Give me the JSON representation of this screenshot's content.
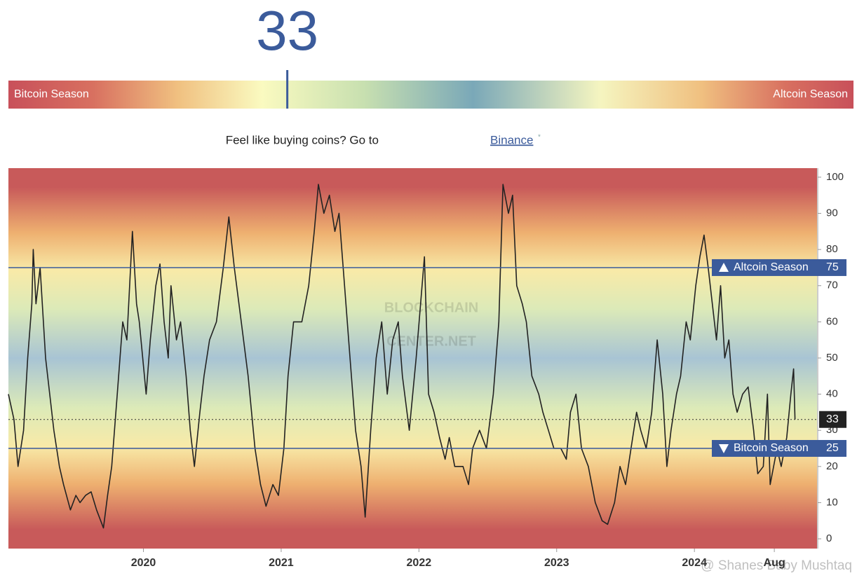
{
  "chart_data": {
    "type": "line",
    "gauge": {
      "value": 33,
      "lim": [
        0,
        100
      ],
      "left_label": "Bitcoin Season",
      "right_label": "Altcoin Season"
    },
    "promo": "Feel like buying coins? Go to",
    "link": "Binance",
    "watermark": [
      "BLOCKCHAIN",
      "CENTER.NET"
    ],
    "credit": "@ Shanes Baby Mushtaq",
    "x": [
      2019.02,
      2019.06,
      2019.09,
      2019.13,
      2019.16,
      2019.19,
      2019.2,
      2019.22,
      2019.25,
      2019.29,
      2019.32,
      2019.35,
      2019.39,
      2019.42,
      2019.47,
      2019.51,
      2019.54,
      2019.58,
      2019.62,
      2019.66,
      2019.71,
      2019.74,
      2019.77,
      2019.81,
      2019.85,
      2019.88,
      2019.92,
      2019.95,
      2019.97,
      2020.02,
      2020.05,
      2020.09,
      2020.12,
      2020.15,
      2020.18,
      2020.2,
      2020.24,
      2020.27,
      2020.31,
      2020.34,
      2020.37,
      2020.41,
      2020.44,
      2020.48,
      2020.53,
      2020.58,
      2020.62,
      2020.66,
      2020.71,
      2020.76,
      2020.81,
      2020.85,
      2020.89,
      2020.94,
      2020.98,
      2021.02,
      2021.05,
      2021.09,
      2021.15,
      2021.2,
      2021.24,
      2021.27,
      2021.31,
      2021.35,
      2021.39,
      2021.42,
      2021.46,
      2021.5,
      2021.54,
      2021.58,
      2021.61,
      2021.65,
      2021.69,
      2021.73,
      2021.77,
      2021.81,
      2021.85,
      2021.88,
      2021.93,
      2021.98,
      2022.04,
      2022.07,
      2022.11,
      2022.15,
      2022.19,
      2022.22,
      2022.26,
      2022.32,
      2022.36,
      2022.39,
      2022.44,
      2022.49,
      2022.54,
      2022.58,
      2022.61,
      2022.65,
      2022.68,
      2022.71,
      2022.75,
      2022.78,
      2022.82,
      2022.87,
      2022.9,
      2022.94,
      2022.98,
      2023.03,
      2023.07,
      2023.1,
      2023.14,
      2023.18,
      2023.23,
      2023.28,
      2023.33,
      2023.37,
      2023.42,
      2023.46,
      2023.5,
      2023.54,
      2023.58,
      2023.61,
      2023.65,
      2023.69,
      2023.73,
      2023.77,
      2023.8,
      2023.83,
      2023.87,
      2023.9,
      2023.94,
      2023.97,
      2024.01,
      2024.04,
      2024.07,
      2024.1,
      2024.13,
      2024.16,
      2024.19,
      2024.22,
      2024.25,
      2024.28,
      2024.31,
      2024.35,
      2024.39,
      2024.43,
      2024.46,
      2024.5,
      2024.53,
      2024.55,
      2024.6,
      2024.63,
      2024.67,
      2024.7,
      2024.72,
      2024.73
    ],
    "series": [
      {
        "color": "#222222",
        "values": [
          40,
          33,
          20,
          30,
          50,
          65,
          80,
          65,
          75,
          50,
          40,
          30,
          20,
          15,
          8,
          12,
          10,
          12,
          13,
          8,
          3,
          12,
          20,
          40,
          60,
          55,
          85,
          65,
          60,
          40,
          55,
          70,
          76,
          60,
          50,
          70,
          55,
          60,
          45,
          30,
          20,
          35,
          45,
          55,
          60,
          75,
          89,
          75,
          60,
          45,
          25,
          15,
          9,
          15,
          12,
          25,
          45,
          60,
          60,
          70,
          85,
          98,
          90,
          95,
          85,
          90,
          70,
          50,
          30,
          20,
          6,
          30,
          50,
          60,
          40,
          55,
          60,
          45,
          30,
          50,
          78,
          40,
          35,
          28,
          22,
          28,
          20,
          20,
          15,
          25,
          30,
          25,
          40,
          60,
          98,
          90,
          95,
          70,
          65,
          60,
          45,
          40,
          35,
          30,
          25,
          25,
          22,
          35,
          40,
          25,
          20,
          10,
          5,
          4,
          10,
          20,
          15,
          25,
          35,
          30,
          25,
          35,
          55,
          40,
          20,
          30,
          40,
          45,
          60,
          55,
          70,
          78,
          84,
          75,
          65,
          55,
          70,
          50,
          55,
          40,
          35,
          40,
          42,
          30,
          18,
          20,
          40,
          15,
          25,
          20,
          28,
          40,
          47,
          33
        ]
      }
    ],
    "xlim": [
      2019.02,
      2024.89
    ],
    "xticks": [
      2020,
      2021,
      2022,
      2023,
      2024,
      {
        "value": 2024.58,
        "label": "Aug"
      }
    ],
    "ylim": [
      -2.7,
      102.5
    ],
    "yticks": [
      0,
      10,
      20,
      30,
      40,
      50,
      60,
      70,
      80,
      90,
      100
    ],
    "reference_lines": [
      {
        "value": 75,
        "label": "Altcoin Season",
        "color": "#3b5b9b"
      },
      {
        "value": 25,
        "label": "Bitcoin Season",
        "color": "#3b5b9b"
      }
    ],
    "current": 33
  }
}
